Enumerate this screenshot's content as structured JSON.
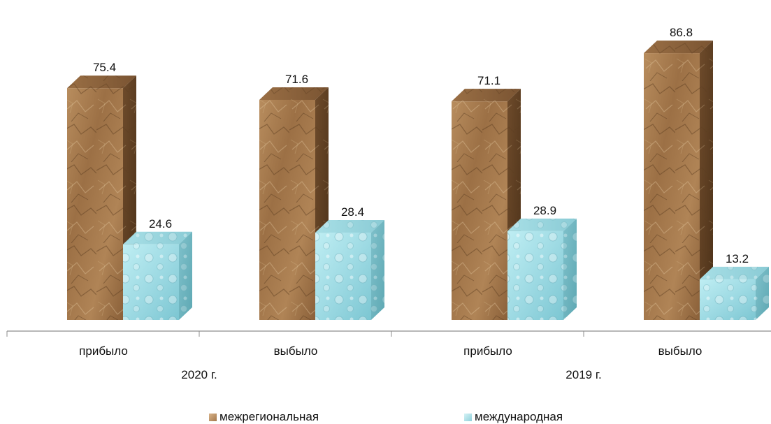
{
  "chart_data": {
    "type": "bar",
    "variant": "3d-clustered-column",
    "groups": [
      {
        "label": "2020 г.",
        "categories": [
          "прибыло",
          "выбыло"
        ]
      },
      {
        "label": "2019 г.",
        "categories": [
          "прибыло",
          "выбыло"
        ]
      }
    ],
    "categories": [
      "прибыло",
      "выбыло",
      "прибыло",
      "выбыло"
    ],
    "series": [
      {
        "name": "межрегиональная",
        "values": [
          75.4,
          71.6,
          71.1,
          86.8
        ],
        "color": "#a4784c"
      },
      {
        "name": "международная",
        "values": [
          24.6,
          28.4,
          28.9,
          13.2
        ],
        "color": "#a6dfe7"
      }
    ],
    "ylim": [
      0,
      100
    ],
    "grid": false,
    "legend_position": "bottom"
  }
}
